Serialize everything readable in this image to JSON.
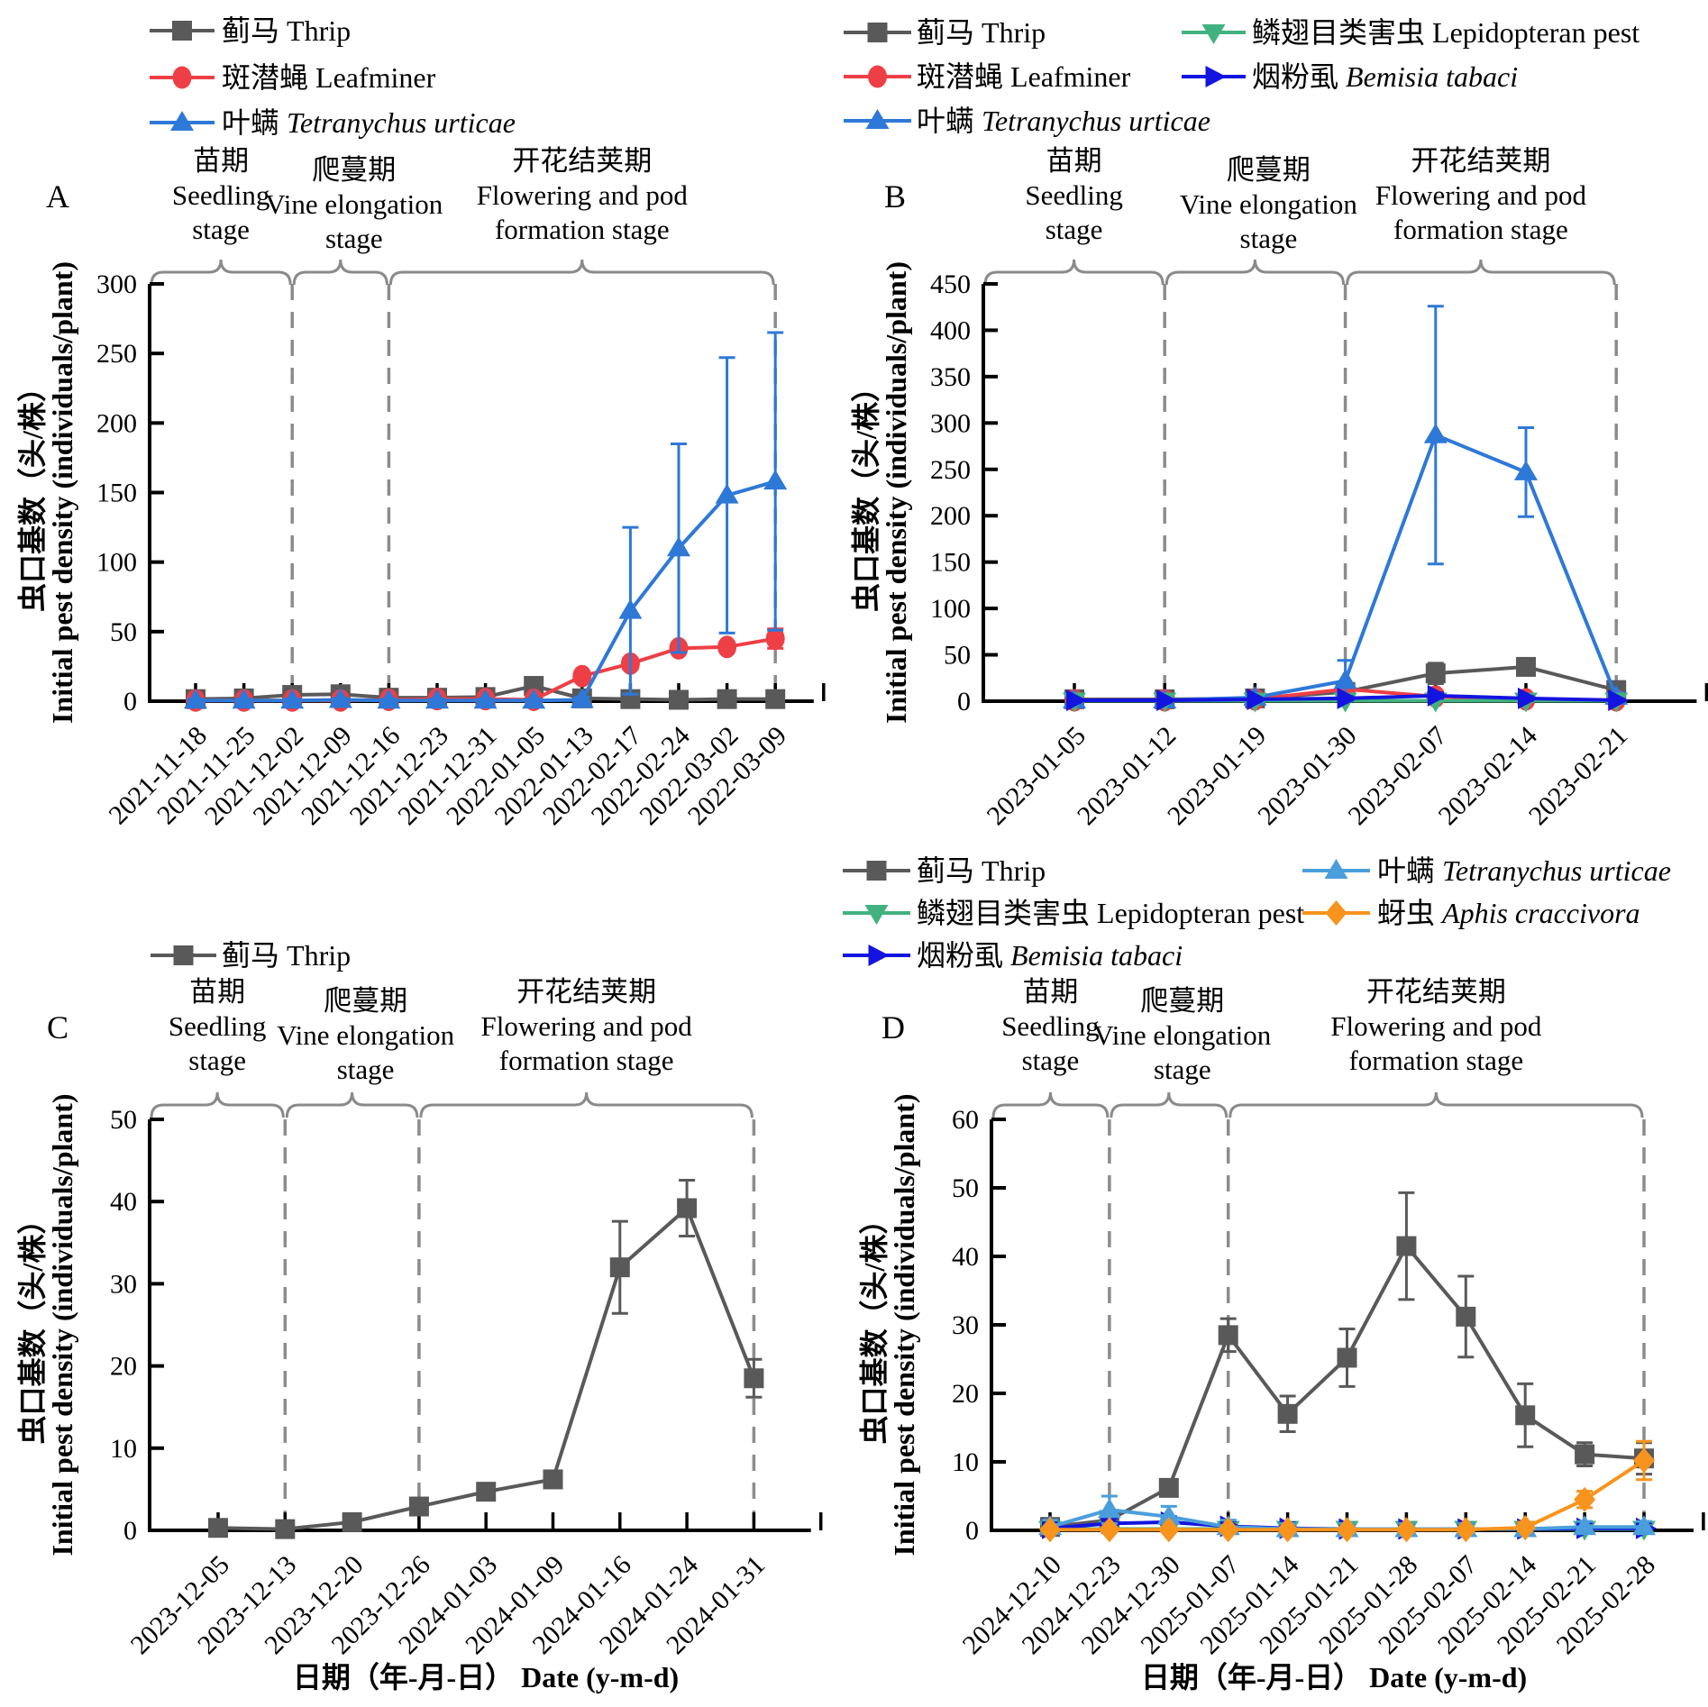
{
  "ylabel_zh": "虫口基数（头/株）",
  "ylabel_en": "Initial pest density (individuals/plant)",
  "xlabel_zh": "日期（年-月-日）",
  "xlabel_en": "Date (y-m-d)",
  "stages": [
    {
      "zh": "苗期",
      "en_lines": [
        "Seedling",
        "stage"
      ]
    },
    {
      "zh": "爬蔓期",
      "en_lines": [
        "Vine elongation",
        "stage"
      ]
    },
    {
      "zh": "开花结荚期",
      "en_lines": [
        "Flowering and pod",
        "formation stage"
      ]
    }
  ],
  "series_defs": {
    "thrip": {
      "label_zh": "蓟马",
      "label_en": "Thrip",
      "italic": false,
      "color": "#595959",
      "marker": "square"
    },
    "leafminer": {
      "label_zh": "斑潜蝇",
      "label_en": "Leafminer",
      "italic": false,
      "color": "#ee3f46",
      "marker": "circle"
    },
    "tetranychus": {
      "label_zh": "叶螨",
      "label_en": "Tetranychus urticae",
      "italic": true,
      "color": "#2e78d8",
      "marker": "triangle-up"
    },
    "tetranychus_light": {
      "label_zh": "叶螨",
      "label_en": "Tetranychus urticae",
      "italic": true,
      "color": "#4b9edc",
      "marker": "triangle-up"
    },
    "lepidopteran": {
      "label_zh": "鳞翅目类害虫",
      "label_en": "Lepidopteran pest",
      "italic": false,
      "color": "#41b27f",
      "marker": "triangle-down"
    },
    "bemisia": {
      "label_zh": "烟粉虱",
      "label_en": "Bemisia tabaci",
      "italic": true,
      "color": "#1414e0",
      "marker": "triangle-right"
    },
    "aphis": {
      "label_zh": "蚜虫",
      "label_en": "Aphis craccivora",
      "italic": true,
      "color": "#f7941d",
      "marker": "diamond"
    }
  },
  "chart_data": [
    {
      "panel": "A",
      "type": "line",
      "ylim": [
        0,
        300
      ],
      "ytick_step": 50,
      "categories": [
        "2021-11-18",
        "2021-11-25",
        "2021-12-02",
        "2021-12-09",
        "2021-12-16",
        "2021-12-23",
        "2021-12-31",
        "2022-01-05",
        "2022-01-13",
        "2022-02-17",
        "2022-02-24",
        "2022-03-02",
        "2022-03-09"
      ],
      "stage_boundaries": [
        2,
        4,
        12
      ],
      "series": [
        {
          "key": "thrip",
          "values": [
            1.5,
            2,
            4.5,
            5,
            2.5,
            2.5,
            3,
            11,
            2,
            1.5,
            1,
            1.5,
            1.5
          ],
          "errors": [
            1,
            1,
            1.5,
            1.5,
            1,
            1,
            1,
            3,
            1,
            1,
            1,
            1,
            1
          ]
        },
        {
          "key": "leafminer",
          "values": [
            0.5,
            0.5,
            0.5,
            0.5,
            1,
            1.5,
            1.5,
            1,
            18,
            27,
            38,
            39,
            45
          ],
          "errors": [
            1,
            1,
            1,
            1,
            1,
            1,
            1,
            1,
            3,
            4,
            3,
            3,
            7
          ]
        },
        {
          "key": "tetranychus",
          "values": [
            0.5,
            0.5,
            0.5,
            1,
            0.5,
            0.5,
            0.5,
            0.5,
            1,
            65,
            110,
            148,
            158
          ],
          "errors": [
            1,
            1,
            1,
            1,
            1,
            1,
            1,
            1,
            2,
            60,
            75,
            99,
            107
          ]
        }
      ]
    },
    {
      "panel": "B",
      "type": "line",
      "ylim": [
        0,
        450
      ],
      "ytick_step": 50,
      "categories": [
        "2023-01-05",
        "2023-01-12",
        "2023-01-19",
        "2023-01-30",
        "2023-02-07",
        "2023-02-14",
        "2023-02-21"
      ],
      "stage_boundaries": [
        1,
        3,
        6
      ],
      "series": [
        {
          "key": "thrip",
          "values": [
            2,
            2,
            3,
            10,
            30,
            37,
            12
          ],
          "errors": [
            2,
            2,
            2,
            4,
            11,
            7,
            8
          ]
        },
        {
          "key": "leafminer",
          "values": [
            1,
            1,
            2,
            13,
            5,
            2,
            1
          ],
          "errors": [
            1,
            1,
            1,
            4,
            2,
            1,
            1
          ]
        },
        {
          "key": "tetranychus",
          "values": [
            1,
            1,
            4,
            22,
            287,
            247,
            5
          ],
          "errors": [
            2,
            2,
            3,
            22,
            139,
            48,
            4
          ]
        },
        {
          "key": "lepidopteran",
          "values": [
            0.5,
            0.5,
            0.5,
            0.5,
            0.5,
            0.5,
            0.5
          ],
          "errors": [
            1,
            1,
            1,
            1,
            1,
            1,
            1
          ]
        },
        {
          "key": "bemisia",
          "values": [
            1,
            1,
            2,
            3,
            6,
            3,
            1
          ],
          "errors": [
            1,
            1,
            1,
            2,
            3,
            2,
            1
          ]
        }
      ]
    },
    {
      "panel": "C",
      "type": "line",
      "ylim": [
        0,
        50
      ],
      "ytick_step": 10,
      "show_xlabel": true,
      "categories": [
        "2023-12-05",
        "2023-12-13",
        "2023-12-20",
        "2023-12-26",
        "2024-01-03",
        "2024-01-09",
        "2024-01-16",
        "2024-01-24",
        "2024-01-31"
      ],
      "stage_boundaries": [
        1,
        3,
        8
      ],
      "series": [
        {
          "key": "thrip",
          "values": [
            0.3,
            0.15,
            1,
            2.9,
            4.7,
            6.2,
            32,
            39.2,
            18.5
          ],
          "errors": [
            0.5,
            0.3,
            0.5,
            0.5,
            0.5,
            0.5,
            5.6,
            3.4,
            2.3
          ]
        }
      ]
    },
    {
      "panel": "D",
      "type": "line",
      "ylim": [
        0,
        60
      ],
      "ytick_step": 10,
      "show_xlabel": true,
      "categories": [
        "2024-12-10",
        "2024-12-23",
        "2024-12-30",
        "2025-01-07",
        "2025-01-14",
        "2025-01-21",
        "2025-01-28",
        "2025-02-07",
        "2025-02-14",
        "2025-02-21",
        "2025-02-28"
      ],
      "stage_boundaries": [
        1,
        3,
        10
      ],
      "series": [
        {
          "key": "thrip",
          "values": [
            0.5,
            1.5,
            6.2,
            28.5,
            17,
            25.2,
            41.5,
            31.2,
            16.8,
            11.1,
            10.5
          ],
          "errors": [
            1,
            1,
            0.6,
            2.4,
            2.6,
            4.2,
            7.8,
            5.9,
            4.6,
            1.7,
            2.3
          ]
        },
        {
          "key": "lepidopteran",
          "values": [
            0.2,
            0.2,
            0.2,
            0.2,
            0.2,
            0.2,
            0.2,
            0.2,
            0.2,
            0.2,
            0.2
          ],
          "errors": [
            0.8,
            0.8,
            0.8,
            0.8,
            0.8,
            0.8,
            0.8,
            0.8,
            0.8,
            0.8,
            0.8
          ]
        },
        {
          "key": "bemisia",
          "values": [
            0.3,
            1,
            1.2,
            0.6,
            0.3,
            0.2,
            0.2,
            0.2,
            0.2,
            0.3,
            0.3
          ],
          "errors": [
            0.8,
            0.8,
            0.8,
            0.8,
            0.8,
            0.8,
            0.8,
            0.8,
            0.8,
            0.8,
            0.8
          ]
        },
        {
          "key": "tetranychus_light",
          "values": [
            0.5,
            3,
            2,
            0.5,
            0.2,
            0.2,
            0.2,
            0.2,
            0.2,
            0.5,
            0.5
          ],
          "errors": [
            1,
            2,
            1.5,
            1,
            0.8,
            0.8,
            0.8,
            0.8,
            0.8,
            0.8,
            0.8
          ]
        },
        {
          "key": "aphis",
          "values": [
            0.1,
            0.1,
            0.1,
            0.1,
            0.1,
            0.1,
            0.1,
            0.1,
            0.4,
            4.5,
            10.2
          ],
          "errors": [
            0,
            0,
            0,
            0,
            0,
            0,
            0,
            0,
            0.8,
            1.2,
            2.8
          ]
        }
      ]
    }
  ]
}
